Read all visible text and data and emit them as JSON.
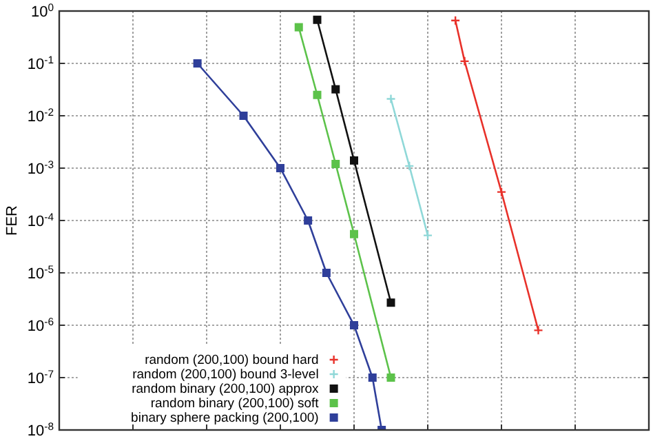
{
  "chart_data": {
    "type": "line",
    "ylabel": "FER",
    "log": "y",
    "grid": true,
    "legend": "bottom",
    "line_style": "solid",
    "tick_labels": "y",
    "categories": [
      null,
      null,
      null,
      null,
      null,
      null,
      null,
      null,
      null,
      null,
      null,
      null,
      null,
      null,
      null,
      null,
      null,
      null,
      null,
      null,
      null,
      null,
      null,
      null,
      null,
      null,
      null,
      null,
      null,
      null,
      null,
      null,
      null,
      null,
      null,
      null,
      null,
      null,
      null,
      null,
      null,
      null,
      null,
      null,
      null,
      null,
      null,
      null,
      null,
      null,
      null,
      null,
      null,
      null,
      null,
      null,
      null,
      null,
      null,
      null,
      null,
      null,
      null,
      null,
      null
    ],
    "ylim": [
      1e-08,
      1
    ],
    "yticks": [
      {
        "value": 1e-08,
        "label": "10$^{-8}$"
      },
      {
        "value": 1e-07,
        "label": "10$^{-7}$"
      },
      {
        "value": 1e-06,
        "label": "10$^{-6}$"
      },
      {
        "value": 1e-05,
        "label": "10$^{-5}$"
      },
      {
        "value": 0.0001,
        "label": "10$^{-4}$"
      },
      {
        "value": 0.001,
        "label": "10$^{-3}$"
      },
      {
        "value": 0.01,
        "label": "10$^{-2}$"
      },
      {
        "value": 0.1,
        "label": "10$^{-1}$"
      },
      {
        "value": 1,
        "label": "10$^{0}$"
      }
    ],
    "series": [
      {
        "name": "random (200,100) bound hard",
        "color": "#e8312a",
        "marker": "cross",
        "values": [
          null,
          null,
          null,
          null,
          null,
          null,
          null,
          null,
          null,
          null,
          null,
          null,
          null,
          null,
          null,
          null,
          null,
          null,
          null,
          null,
          null,
          null,
          null,
          null,
          null,
          null,
          null,
          null,
          null,
          null,
          null,
          null,
          null,
          null,
          null,
          null,
          null,
          null,
          null,
          null,
          null,
          null,
          null,
          0.66,
          0.11,
          null,
          null,
          null,
          0.00035,
          null,
          null,
          null,
          8e-07,
          null,
          null,
          null,
          null,
          null,
          null,
          null,
          null,
          null,
          null,
          null,
          null
        ]
      },
      {
        "name": "random (200,100) bound 3-level",
        "color": "#8fd8d8",
        "marker": "cross",
        "values": [
          null,
          null,
          null,
          null,
          null,
          null,
          null,
          null,
          null,
          null,
          null,
          null,
          null,
          null,
          null,
          null,
          null,
          null,
          null,
          null,
          null,
          null,
          null,
          null,
          null,
          null,
          null,
          null,
          null,
          null,
          null,
          null,
          null,
          null,
          null,
          null,
          0.021,
          null,
          0.0011,
          null,
          5.2e-05,
          null,
          null,
          null,
          null,
          null,
          null,
          null,
          null,
          null,
          null,
          null,
          null,
          null,
          null,
          null,
          null,
          null,
          null,
          null,
          null,
          null,
          null,
          null,
          null
        ]
      },
      {
        "name": "random binary (200,100) approx",
        "color": "#111111",
        "marker": "square",
        "values": [
          null,
          null,
          null,
          null,
          null,
          null,
          null,
          null,
          null,
          null,
          null,
          null,
          null,
          null,
          null,
          null,
          null,
          null,
          null,
          null,
          null,
          null,
          null,
          null,
          null,
          null,
          null,
          null,
          0.68,
          null,
          0.032,
          null,
          0.0014,
          null,
          null,
          null,
          2.7e-06,
          null,
          null,
          null,
          null,
          null,
          null,
          null,
          null,
          null,
          null,
          null,
          null,
          null,
          null,
          null,
          null,
          null,
          null,
          null,
          null,
          null,
          null,
          null,
          null,
          null,
          null,
          null,
          null
        ]
      },
      {
        "name": "random binary (200,100) soft",
        "color": "#5cc24a",
        "marker": "square",
        "values": [
          null,
          null,
          null,
          null,
          null,
          null,
          null,
          null,
          null,
          null,
          null,
          null,
          null,
          null,
          null,
          null,
          null,
          null,
          null,
          null,
          null,
          null,
          null,
          null,
          null,
          null,
          0.49,
          null,
          0.025,
          null,
          0.0012,
          null,
          5.5e-05,
          null,
          null,
          null,
          1e-07,
          null,
          null,
          null,
          null,
          null,
          null,
          null,
          null,
          null,
          null,
          null,
          null,
          null,
          null,
          null,
          null,
          null,
          null,
          null,
          null,
          null,
          null,
          null,
          null,
          null,
          null,
          null,
          null
        ]
      },
      {
        "name": "binary sphere packing (200,100)",
        "color": "#2f3f9a",
        "marker": "square",
        "values": [
          null,
          null,
          null,
          null,
          null,
          null,
          null,
          null,
          null,
          null,
          null,
          null,
          null,
          null,
          null,
          0.1,
          null,
          null,
          null,
          null,
          0.01,
          null,
          null,
          null,
          0.001,
          null,
          null,
          0.0001,
          null,
          1e-05,
          null,
          null,
          1e-06,
          null,
          1e-07,
          1e-08,
          null,
          null,
          null,
          null,
          null,
          null,
          null,
          null,
          null,
          null,
          null,
          null,
          null,
          null,
          null,
          null,
          null,
          null,
          null,
          null,
          null,
          null,
          null,
          null,
          null,
          null,
          null,
          null,
          null
        ]
      }
    ]
  }
}
